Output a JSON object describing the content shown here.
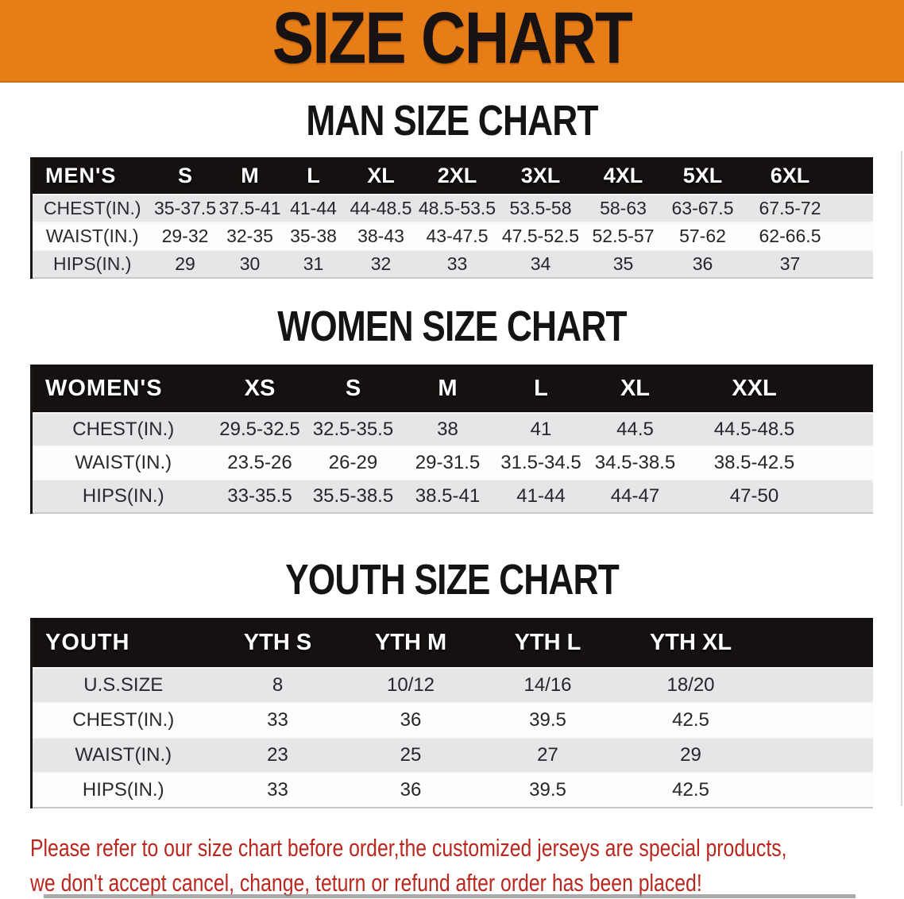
{
  "banner": {
    "title": "SIZE CHART",
    "bg_color": "#e67d17",
    "text_color": "#181312"
  },
  "sections": {
    "men": {
      "title": "MAN SIZE CHART",
      "table": {
        "header_label": "MEN'S",
        "columns": [
          "S",
          "M",
          "L",
          "XL",
          "2XL",
          "3XL",
          "4XL",
          "5XL",
          "6XL"
        ],
        "rows": [
          {
            "label": "CHEST(IN.)",
            "values": [
              "35-37.5",
              "37.5-41",
              "41-44",
              "44-48.5",
              "48.5-53.5",
              "53.5-58",
              "58-63",
              "63-67.5",
              "67.5-72"
            ]
          },
          {
            "label": "WAIST(IN.)",
            "values": [
              "29-32",
              "32-35",
              "35-38",
              "38-43",
              "43-47.5",
              "47.5-52.5",
              "52.5-57",
              "57-62",
              "62-66.5"
            ]
          },
          {
            "label": "HIPS(IN.)",
            "values": [
              "29",
              "30",
              "31",
              "32",
              "33",
              "34",
              "35",
              "36",
              "37"
            ]
          }
        ]
      }
    },
    "women": {
      "title": "WOMEN SIZE CHART",
      "table": {
        "header_label": "WOMEN'S",
        "columns": [
          "XS",
          "S",
          "M",
          "L",
          "XL",
          "XXL"
        ],
        "rows": [
          {
            "label": "CHEST(IN.)",
            "values": [
              "29.5-32.5",
              "32.5-35.5",
              "38",
              "41",
              "44.5",
              "44.5-48.5"
            ]
          },
          {
            "label": "WAIST(IN.)",
            "values": [
              "23.5-26",
              "26-29",
              "29-31.5",
              "31.5-34.5",
              "34.5-38.5",
              "38.5-42.5"
            ]
          },
          {
            "label": "HIPS(IN.)",
            "values": [
              "33-35.5",
              "35.5-38.5",
              "38.5-41",
              "41-44",
              "44-47",
              "47-50"
            ]
          }
        ]
      }
    },
    "youth": {
      "title": "YOUTH SIZE CHART",
      "table": {
        "header_label": "YOUTH",
        "columns": [
          "YTH S",
          "YTH M",
          "YTH L",
          "YTH XL"
        ],
        "rows": [
          {
            "label": "U.S.SIZE",
            "values": [
              "8",
              "10/12",
              "14/16",
              "18/20"
            ]
          },
          {
            "label": "CHEST(IN.)",
            "values": [
              "33",
              "36",
              "39.5",
              "42.5"
            ]
          },
          {
            "label": "WAIST(IN.)",
            "values": [
              "23",
              "25",
              "27",
              "29"
            ]
          },
          {
            "label": "HIPS(IN.)",
            "values": [
              "33",
              "36",
              "39.5",
              "42.5"
            ]
          }
        ]
      }
    }
  },
  "footer": {
    "lines": [
      "Please refer to our size chart before order,the customized jerseys are special products,",
      "we don't accept cancel, change, teturn or refund after order has been placed!"
    ],
    "text_color": "#b9271e"
  },
  "style_colors": {
    "table_header_bar": "#151110",
    "row_shade_gray": "#e6e6e8",
    "row_shade_white": "#fdfdfd"
  }
}
